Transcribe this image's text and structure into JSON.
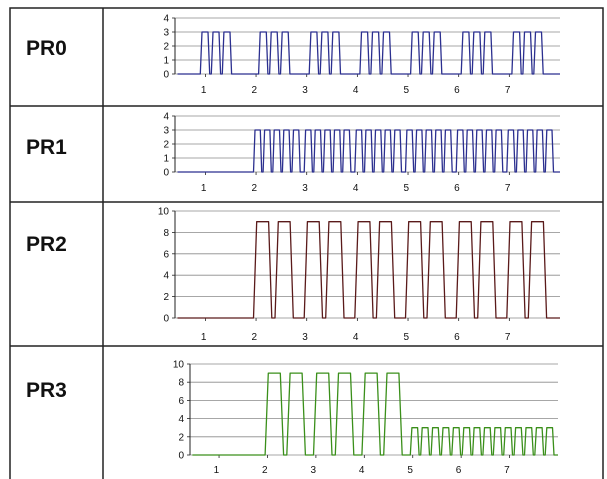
{
  "figure": {
    "border_color": "#222222",
    "grid_color": "#8a8a8a"
  },
  "chart_data": [
    {
      "type": "line",
      "label": "PR0",
      "color": "#2b2f8f",
      "ylim": [
        0,
        4
      ],
      "yticks": [
        "0",
        "1",
        "2",
        "3",
        "4"
      ],
      "xticks": [
        "1",
        "2",
        "3",
        "4",
        "5",
        "6",
        "7"
      ],
      "grid": true,
      "pattern": {
        "description_units": "x axis in interval units (tick k at k), amplitude in y units",
        "bursts": [
          {
            "start": 0.45,
            "end": 1.1,
            "pulses": 3,
            "amplitude": 3
          },
          {
            "start": 1.6,
            "end": 2.25,
            "pulses": 3,
            "amplitude": 3
          },
          {
            "start": 2.6,
            "end": 3.25,
            "pulses": 3,
            "amplitude": 3
          },
          {
            "start": 3.6,
            "end": 4.25,
            "pulses": 3,
            "amplitude": 3
          },
          {
            "start": 4.6,
            "end": 5.25,
            "pulses": 3,
            "amplitude": 3
          },
          {
            "start": 5.6,
            "end": 6.25,
            "pulses": 3,
            "amplitude": 3
          },
          {
            "start": 6.6,
            "end": 7.25,
            "pulses": 3,
            "amplitude": 3
          }
        ]
      }
    },
    {
      "type": "line",
      "label": "PR1",
      "color": "#2b2f8f",
      "ylim": [
        0,
        4
      ],
      "yticks": [
        "0",
        "1",
        "2",
        "3",
        "4"
      ],
      "xticks": [
        "1",
        "2",
        "3",
        "4",
        "5",
        "6",
        "7"
      ],
      "grid": true,
      "pattern": {
        "bursts": [
          {
            "start": 1.5,
            "end": 2.45,
            "pulses": 5,
            "amplitude": 3
          },
          {
            "start": 2.5,
            "end": 3.45,
            "pulses": 5,
            "amplitude": 3
          },
          {
            "start": 3.5,
            "end": 4.45,
            "pulses": 5,
            "amplitude": 3
          },
          {
            "start": 4.5,
            "end": 5.45,
            "pulses": 5,
            "amplitude": 3
          },
          {
            "start": 5.5,
            "end": 6.45,
            "pulses": 5,
            "amplitude": 3
          },
          {
            "start": 6.5,
            "end": 7.45,
            "pulses": 5,
            "amplitude": 3
          }
        ]
      }
    },
    {
      "type": "line",
      "label": "PR2",
      "color": "#5a1a1a",
      "ylim": [
        0,
        10
      ],
      "yticks": [
        "0",
        "2",
        "4",
        "6",
        "8",
        "10"
      ],
      "xticks": [
        "1",
        "2",
        "3",
        "4",
        "5",
        "6",
        "7"
      ],
      "grid": true,
      "pattern": {
        "bursts": [
          {
            "start": 1.5,
            "end": 2.35,
            "pulses": 2,
            "amplitude": 9
          },
          {
            "start": 2.5,
            "end": 3.35,
            "pulses": 2,
            "amplitude": 9
          },
          {
            "start": 3.5,
            "end": 4.35,
            "pulses": 2,
            "amplitude": 9
          },
          {
            "start": 4.5,
            "end": 5.35,
            "pulses": 2,
            "amplitude": 9
          },
          {
            "start": 5.5,
            "end": 6.35,
            "pulses": 2,
            "amplitude": 9
          },
          {
            "start": 6.5,
            "end": 7.35,
            "pulses": 2,
            "amplitude": 9
          }
        ]
      }
    },
    {
      "type": "line",
      "label": "PR3",
      "color": "#3a8f1a",
      "ylim": [
        0,
        10
      ],
      "yticks": [
        "0",
        "2",
        "4",
        "6",
        "8",
        "10"
      ],
      "xticks": [
        "1",
        "2",
        "3",
        "4",
        "5",
        "6",
        "7"
      ],
      "grid": true,
      "pattern": {
        "bursts": [
          {
            "start": 1.5,
            "end": 2.4,
            "pulses": 2,
            "amplitude": 9
          },
          {
            "start": 2.5,
            "end": 3.4,
            "pulses": 2,
            "amplitude": 9
          },
          {
            "start": 3.5,
            "end": 4.4,
            "pulses": 2,
            "amplitude": 9
          },
          {
            "start": 4.5,
            "end": 7.5,
            "pulses": 14,
            "amplitude": 3
          }
        ]
      }
    }
  ]
}
